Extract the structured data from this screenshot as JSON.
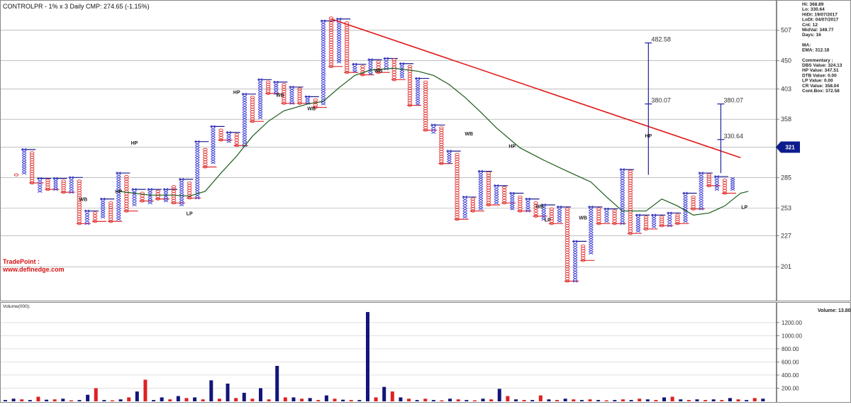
{
  "header": {
    "title": "CONTROLPR - 1% x 3 Daily CMP: 274.65 (-1.15%)"
  },
  "info_panel": {
    "lines": [
      "Hi: 368.89",
      "Lo: 330.64",
      "HiDt: 19/07/2017",
      "LoDt: 04/07/2017",
      "Cnt: 12",
      "MidVal: 349.77",
      "Days: 16"
    ],
    "ma": [
      "MA:",
      "EMA: 312.18"
    ],
    "commentary": [
      "Commentary :",
      "DBS Value: 324.13",
      "HP Value: 347.51",
      "DTB Value: 0.00",
      "LP Value: 0.00",
      "CR Value: 358.04",
      "Cont.Box: 372.58"
    ]
  },
  "tradepoint": {
    "line1": "TradePoint :",
    "line2": "www.definedge.com"
  },
  "price_marker": "321",
  "volume_panel": {
    "label": "Volume(000):",
    "volume_text": "Volume: 13.80"
  },
  "annotations": {
    "hp": "HP",
    "lp": "LP",
    "wb": "WB",
    "target_levels": [
      "482.58",
      "380.07",
      "380.07",
      "330.64"
    ]
  },
  "colors": {
    "x_column": "#3b3bd6",
    "o_column": "#e02a2a",
    "trendline": "#e01a1a",
    "ema": "#1a5c1a",
    "level": "#1a1a8c",
    "volume_up": "#14147a",
    "volume_down": "#e02020"
  },
  "chart_data": [
    {
      "type": "point-and-figure",
      "title": "CONTROLPR - 1% x 3 Daily CMP: 274.65 (-1.15%)",
      "y_ticks": [
        507,
        450,
        403,
        358,
        321,
        285,
        253,
        227,
        201
      ],
      "ylim": [
        183,
        540
      ],
      "columns": [
        {
          "kind": "O",
          "high": 288,
          "low": 288
        },
        {
          "kind": "X",
          "high": 318,
          "low": 290
        },
        {
          "kind": "O",
          "high": 314,
          "low": 279
        },
        {
          "kind": "X",
          "high": 284,
          "low": 270
        },
        {
          "kind": "O",
          "high": 282,
          "low": 272
        },
        {
          "kind": "X",
          "high": 284,
          "low": 272
        },
        {
          "kind": "O",
          "high": 281,
          "low": 269
        },
        {
          "kind": "X",
          "high": 285,
          "low": 269
        },
        {
          "kind": "O",
          "high": 281,
          "low": 238
        },
        {
          "kind": "X",
          "high": 250,
          "low": 238
        },
        {
          "kind": "O",
          "high": 248,
          "low": 240
        },
        {
          "kind": "X",
          "high": 262,
          "low": 244
        },
        {
          "kind": "O",
          "high": 258,
          "low": 240
        },
        {
          "kind": "X",
          "high": 290,
          "low": 242
        },
        {
          "kind": "O",
          "high": 286,
          "low": 250
        },
        {
          "kind": "X",
          "high": 272,
          "low": 256
        },
        {
          "kind": "O",
          "high": 268,
          "low": 260
        },
        {
          "kind": "X",
          "high": 272,
          "low": 258
        },
        {
          "kind": "O",
          "high": 270,
          "low": 262
        },
        {
          "kind": "X",
          "high": 272,
          "low": 260
        },
        {
          "kind": "O",
          "high": 275,
          "low": 258
        },
        {
          "kind": "X",
          "high": 283,
          "low": 256
        },
        {
          "kind": "O",
          "high": 279,
          "low": 263
        },
        {
          "kind": "X",
          "high": 328,
          "low": 263
        },
        {
          "kind": "O",
          "high": 318,
          "low": 297
        },
        {
          "kind": "X",
          "high": 348,
          "low": 302
        },
        {
          "kind": "O",
          "high": 343,
          "low": 330
        },
        {
          "kind": "X",
          "high": 340,
          "low": 328
        },
        {
          "kind": "O",
          "high": 337,
          "low": 323
        },
        {
          "kind": "X",
          "high": 395,
          "low": 323
        },
        {
          "kind": "O",
          "high": 390,
          "low": 355
        },
        {
          "kind": "X",
          "high": 418,
          "low": 360
        },
        {
          "kind": "O",
          "high": 414,
          "low": 396
        },
        {
          "kind": "X",
          "high": 414,
          "low": 396
        },
        {
          "kind": "O",
          "high": 410,
          "low": 381
        },
        {
          "kind": "X",
          "high": 406,
          "low": 381
        },
        {
          "kind": "O",
          "high": 403,
          "low": 381
        },
        {
          "kind": "X",
          "high": 391,
          "low": 381
        },
        {
          "kind": "O",
          "high": 386,
          "low": 375
        },
        {
          "kind": "X",
          "high": 526,
          "low": 380
        },
        {
          "kind": "O",
          "high": 532,
          "low": 440
        },
        {
          "kind": "X",
          "high": 530,
          "low": 448
        },
        {
          "kind": "O",
          "high": 522,
          "low": 430
        },
        {
          "kind": "X",
          "high": 444,
          "low": 432
        },
        {
          "kind": "O",
          "high": 440,
          "low": 426
        },
        {
          "kind": "X",
          "high": 452,
          "low": 428
        },
        {
          "kind": "O",
          "high": 448,
          "low": 430
        },
        {
          "kind": "X",
          "high": 454,
          "low": 436
        },
        {
          "kind": "O",
          "high": 452,
          "low": 418
        },
        {
          "kind": "X",
          "high": 445,
          "low": 422
        },
        {
          "kind": "O",
          "high": 440,
          "low": 378
        },
        {
          "kind": "X",
          "high": 420,
          "low": 380
        },
        {
          "kind": "O",
          "high": 414,
          "low": 343
        },
        {
          "kind": "X",
          "high": 350,
          "low": 340
        },
        {
          "kind": "O",
          "high": 346,
          "low": 301
        },
        {
          "kind": "X",
          "high": 316,
          "low": 302
        },
        {
          "kind": "O",
          "high": 312,
          "low": 242
        },
        {
          "kind": "X",
          "high": 264,
          "low": 244
        },
        {
          "kind": "O",
          "high": 262,
          "low": 250
        },
        {
          "kind": "X",
          "high": 292,
          "low": 252
        },
        {
          "kind": "O",
          "high": 290,
          "low": 256
        },
        {
          "kind": "X",
          "high": 276,
          "low": 258
        },
        {
          "kind": "O",
          "high": 274,
          "low": 258
        },
        {
          "kind": "X",
          "high": 268,
          "low": 252
        },
        {
          "kind": "O",
          "high": 264,
          "low": 250
        },
        {
          "kind": "X",
          "high": 262,
          "low": 250
        },
        {
          "kind": "O",
          "high": 258,
          "low": 245
        },
        {
          "kind": "X",
          "high": 256,
          "low": 242
        },
        {
          "kind": "O",
          "high": 252,
          "low": 238
        },
        {
          "kind": "X",
          "high": 254,
          "low": 240
        },
        {
          "kind": "O",
          "high": 252,
          "low": 190
        },
        {
          "kind": "X",
          "high": 222,
          "low": 190
        },
        {
          "kind": "O",
          "high": 218,
          "low": 206
        },
        {
          "kind": "X",
          "high": 254,
          "low": 212
        },
        {
          "kind": "O",
          "high": 252,
          "low": 238
        },
        {
          "kind": "X",
          "high": 252,
          "low": 240
        },
        {
          "kind": "O",
          "high": 250,
          "low": 238
        },
        {
          "kind": "X",
          "high": 294,
          "low": 238
        },
        {
          "kind": "O",
          "high": 292,
          "low": 229
        },
        {
          "kind": "X",
          "high": 246,
          "low": 231
        },
        {
          "kind": "O",
          "high": 244,
          "low": 233
        },
        {
          "kind": "X",
          "high": 246,
          "low": 235
        },
        {
          "kind": "O",
          "high": 244,
          "low": 236
        },
        {
          "kind": "X",
          "high": 248,
          "low": 236
        },
        {
          "kind": "O",
          "high": 246,
          "low": 238
        },
        {
          "kind": "X",
          "high": 268,
          "low": 240
        },
        {
          "kind": "O",
          "high": 264,
          "low": 252
        },
        {
          "kind": "X",
          "high": 290,
          "low": 252
        },
        {
          "kind": "O",
          "high": 288,
          "low": 276
        },
        {
          "kind": "X",
          "high": 286,
          "low": 272
        },
        {
          "kind": "O",
          "high": 282,
          "low": 268
        },
        {
          "kind": "X",
          "high": 284,
          "low": 272
        }
      ],
      "trendline": {
        "from": {
          "col": 40,
          "price": 530
        },
        "to": {
          "col": 92,
          "price": 308
        }
      },
      "ema": [
        {
          "col": 13,
          "price": 270
        },
        {
          "col": 15,
          "price": 268
        },
        {
          "col": 17,
          "price": 266
        },
        {
          "col": 20,
          "price": 266
        },
        {
          "col": 22,
          "price": 265
        },
        {
          "col": 24,
          "price": 270
        },
        {
          "col": 26,
          "price": 290
        },
        {
          "col": 28,
          "price": 310
        },
        {
          "col": 30,
          "price": 335
        },
        {
          "col": 32,
          "price": 355
        },
        {
          "col": 34,
          "price": 370
        },
        {
          "col": 37,
          "price": 380
        },
        {
          "col": 39,
          "price": 384
        },
        {
          "col": 41,
          "price": 405
        },
        {
          "col": 43,
          "price": 425
        },
        {
          "col": 45,
          "price": 434
        },
        {
          "col": 48,
          "price": 437
        },
        {
          "col": 51,
          "price": 432
        },
        {
          "col": 53,
          "price": 425
        },
        {
          "col": 55,
          "price": 410
        },
        {
          "col": 57,
          "price": 390
        },
        {
          "col": 59,
          "price": 368
        },
        {
          "col": 61,
          "price": 346
        },
        {
          "col": 64,
          "price": 320
        },
        {
          "col": 67,
          "price": 305
        },
        {
          "col": 70,
          "price": 292
        },
        {
          "col": 73,
          "price": 280
        },
        {
          "col": 75,
          "price": 264
        },
        {
          "col": 77,
          "price": 250
        },
        {
          "col": 80,
          "price": 250
        },
        {
          "col": 82,
          "price": 262
        },
        {
          "col": 84,
          "price": 255
        },
        {
          "col": 86,
          "price": 246
        },
        {
          "col": 88,
          "price": 248
        },
        {
          "col": 90,
          "price": 255
        },
        {
          "col": 92,
          "price": 268
        },
        {
          "col": 93,
          "price": 270
        }
      ]
    },
    {
      "type": "bar",
      "ylabel": "Volume(000):",
      "y_ticks": [
        200,
        400,
        600,
        800,
        1000,
        1200
      ],
      "ylim": [
        0,
        1350
      ],
      "bars": [
        {
          "v": 20,
          "up": true
        },
        {
          "v": 40,
          "up": true
        },
        {
          "v": 30,
          "up": false
        },
        {
          "v": 20,
          "up": true
        },
        {
          "v": 70,
          "up": false
        },
        {
          "v": 25,
          "up": true
        },
        {
          "v": 30,
          "up": false
        },
        {
          "v": 40,
          "up": true
        },
        {
          "v": 15,
          "up": false
        },
        {
          "v": 20,
          "up": true
        },
        {
          "v": 100,
          "up": true
        },
        {
          "v": 200,
          "up": false
        },
        {
          "v": 20,
          "up": true
        },
        {
          "v": 15,
          "up": false
        },
        {
          "v": 30,
          "up": true
        },
        {
          "v": 60,
          "up": false
        },
        {
          "v": 150,
          "up": true
        },
        {
          "v": 330,
          "up": false
        },
        {
          "v": 20,
          "up": true
        },
        {
          "v": 60,
          "up": true
        },
        {
          "v": 30,
          "up": false
        },
        {
          "v": 80,
          "up": true
        },
        {
          "v": 50,
          "up": false
        },
        {
          "v": 60,
          "up": true
        },
        {
          "v": 30,
          "up": false
        },
        {
          "v": 320,
          "up": true
        },
        {
          "v": 40,
          "up": false
        },
        {
          "v": 270,
          "up": true
        },
        {
          "v": 50,
          "up": false
        },
        {
          "v": 130,
          "up": true
        },
        {
          "v": 40,
          "up": false
        },
        {
          "v": 200,
          "up": true
        },
        {
          "v": 30,
          "up": false
        },
        {
          "v": 540,
          "up": true
        },
        {
          "v": 60,
          "up": false
        },
        {
          "v": 60,
          "up": true
        },
        {
          "v": 40,
          "up": false
        },
        {
          "v": 50,
          "up": true
        },
        {
          "v": 20,
          "up": false
        },
        {
          "v": 90,
          "up": true
        },
        {
          "v": 40,
          "up": false
        },
        {
          "v": 25,
          "up": true
        },
        {
          "v": 20,
          "up": false
        },
        {
          "v": 20,
          "up": true
        },
        {
          "v": 1360,
          "up": true
        },
        {
          "v": 60,
          "up": false
        },
        {
          "v": 220,
          "up": true
        },
        {
          "v": 150,
          "up": false
        },
        {
          "v": 60,
          "up": true
        },
        {
          "v": 40,
          "up": false
        },
        {
          "v": 20,
          "up": true
        },
        {
          "v": 40,
          "up": false
        },
        {
          "v": 20,
          "up": true
        },
        {
          "v": 15,
          "up": false
        },
        {
          "v": 40,
          "up": true
        },
        {
          "v": 30,
          "up": false
        },
        {
          "v": 20,
          "up": true
        },
        {
          "v": 15,
          "up": false
        },
        {
          "v": 40,
          "up": true
        },
        {
          "v": 30,
          "up": false
        },
        {
          "v": 190,
          "up": true
        },
        {
          "v": 80,
          "up": false
        },
        {
          "v": 30,
          "up": true
        },
        {
          "v": 20,
          "up": false
        },
        {
          "v": 20,
          "up": true
        },
        {
          "v": 90,
          "up": false
        },
        {
          "v": 30,
          "up": true
        },
        {
          "v": 20,
          "up": false
        },
        {
          "v": 40,
          "up": true
        },
        {
          "v": 30,
          "up": false
        },
        {
          "v": 20,
          "up": true
        },
        {
          "v": 30,
          "up": false
        },
        {
          "v": 20,
          "up": true
        },
        {
          "v": 15,
          "up": false
        },
        {
          "v": 20,
          "up": true
        },
        {
          "v": 30,
          "up": false
        },
        {
          "v": 20,
          "up": true
        },
        {
          "v": 40,
          "up": false
        },
        {
          "v": 30,
          "up": true
        },
        {
          "v": 20,
          "up": false
        },
        {
          "v": 60,
          "up": true
        },
        {
          "v": 70,
          "up": false
        },
        {
          "v": 30,
          "up": true
        },
        {
          "v": 20,
          "up": false
        },
        {
          "v": 30,
          "up": true
        },
        {
          "v": 20,
          "up": false
        },
        {
          "v": 30,
          "up": true
        },
        {
          "v": 20,
          "up": false
        },
        {
          "v": 50,
          "up": true
        },
        {
          "v": 30,
          "up": false
        },
        {
          "v": 20,
          "up": true
        },
        {
          "v": 50,
          "up": false
        },
        {
          "v": 40,
          "up": true
        }
      ]
    }
  ]
}
